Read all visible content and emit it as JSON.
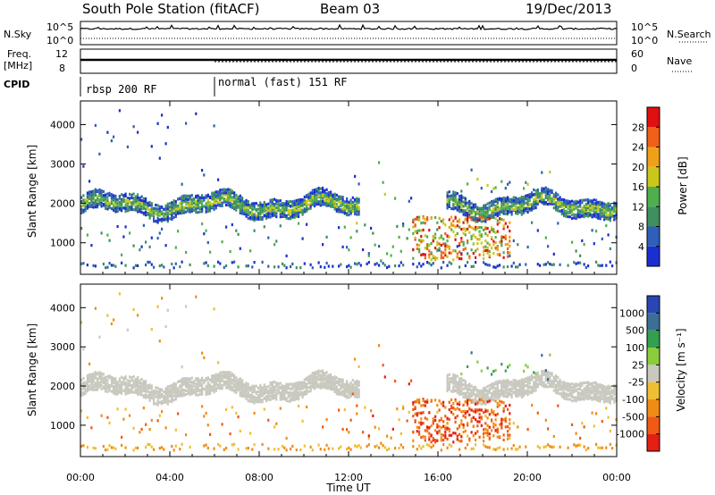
{
  "header": {
    "title": "South Pole Station (fitACF)",
    "beam": "Beam 03",
    "date": "19/Dec/2013"
  },
  "noise_panel": {
    "left_label": "N.Sky",
    "right_label": "N.Search",
    "left_ticks": [
      "10^5",
      "10^0"
    ],
    "right_ticks": [
      "10^5",
      "10^0"
    ]
  },
  "freq_panel": {
    "left_label_1": "Freq.",
    "left_label_2": "[MHz]",
    "left_ticks": [
      "12",
      "8"
    ],
    "right_label": "Nave",
    "right_ticks": [
      "60",
      "0"
    ]
  },
  "cpid": {
    "label": "CPID",
    "segments": [
      {
        "name": "rbsp 200 RF",
        "start_hour": 0,
        "end_hour": 6.0
      },
      {
        "name": "normal (fast) 151 RF",
        "start_hour": 6.0,
        "end_hour": 24
      }
    ]
  },
  "colors": {
    "power_scale": [
      "#1a2fd0",
      "#2f5fb8",
      "#3f8f5f",
      "#4faf4f",
      "#c8c81a",
      "#f0a018",
      "#f06018",
      "#e01010"
    ],
    "velocity_scale": [
      "#2846b4",
      "#3c6e96",
      "#32a050",
      "#8ccd3c",
      "#c8c8be",
      "#f0be32",
      "#f08c14",
      "#f05a14",
      "#e61e14"
    ]
  },
  "chart_data": [
    {
      "type": "heatmap",
      "panel": "power",
      "ylabel": "Slant Range [km]",
      "xlabel": "Time UT",
      "xlim": [
        0,
        24
      ],
      "ylim": [
        200,
        4600
      ],
      "y_ticks": [
        "1000",
        "2000",
        "3000",
        "4000"
      ],
      "x_ticks": [
        "00:00",
        "04:00",
        "08:00",
        "12:00",
        "16:00",
        "20:00",
        "00:00"
      ],
      "colorbar": {
        "label": "Power [dB]",
        "range": [
          0,
          32
        ],
        "ticks": [
          "4",
          "8",
          "12",
          "16",
          "20",
          "24",
          "28"
        ]
      }
    },
    {
      "type": "heatmap",
      "panel": "velocity",
      "ylabel": "Slant Range [km]",
      "xlabel": "Time UT",
      "xlim": [
        0,
        24
      ],
      "ylim": [
        200,
        4600
      ],
      "y_ticks": [
        "1000",
        "2000",
        "3000",
        "4000"
      ],
      "x_ticks": [
        "00:00",
        "04:00",
        "08:00",
        "12:00",
        "16:00",
        "20:00",
        "00:00"
      ],
      "colorbar": {
        "label": "Velocity [m s⁻¹]",
        "ticks": [
          "1000",
          "500",
          "100",
          "25",
          "-25",
          "-100",
          "-500",
          "-1000"
        ]
      }
    }
  ]
}
